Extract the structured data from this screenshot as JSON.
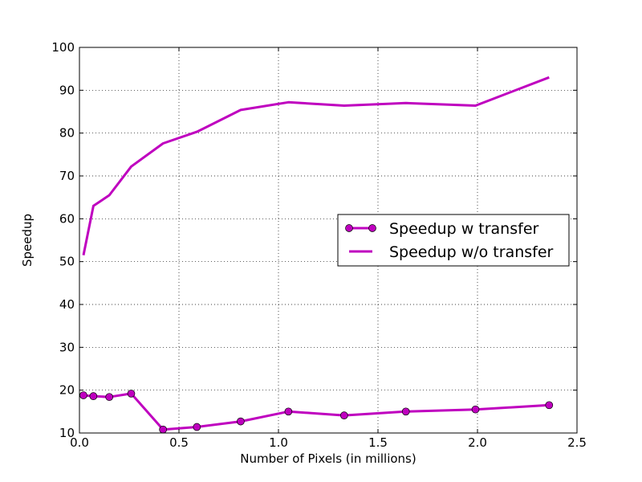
{
  "chart_data": {
    "type": "line",
    "xlabel": "Number of Pixels (in millions)",
    "ylabel": "Speedup",
    "xlim": [
      0.0,
      2.5
    ],
    "ylim": [
      10,
      100
    ],
    "x_ticks": [
      "0.0",
      "0.5",
      "1.0",
      "1.5",
      "2.0",
      "2.5"
    ],
    "y_ticks": [
      "10",
      "20",
      "30",
      "40",
      "50",
      "60",
      "70",
      "80",
      "90",
      "100"
    ],
    "grid": true,
    "legend_position": "center-right",
    "series": [
      {
        "name": "Speedup w transfer",
        "color": "#bf00bf",
        "marker": "circle",
        "x": [
          0.02,
          0.07,
          0.15,
          0.26,
          0.42,
          0.59,
          0.81,
          1.05,
          1.33,
          1.64,
          1.99,
          2.36
        ],
        "y": [
          18.8,
          18.6,
          18.4,
          19.2,
          10.8,
          11.4,
          12.7,
          15.0,
          14.1,
          15.0,
          15.5,
          16.5
        ]
      },
      {
        "name": "Speedup w/o transfer",
        "color": "#bf00bf",
        "marker": "none",
        "x": [
          0.02,
          0.07,
          0.15,
          0.26,
          0.42,
          0.59,
          0.81,
          1.05,
          1.33,
          1.64,
          1.99,
          2.36
        ],
        "y": [
          51.5,
          63.0,
          65.5,
          72.2,
          77.6,
          80.3,
          85.4,
          87.2,
          86.4,
          87.0,
          86.4,
          93.0
        ]
      }
    ]
  }
}
